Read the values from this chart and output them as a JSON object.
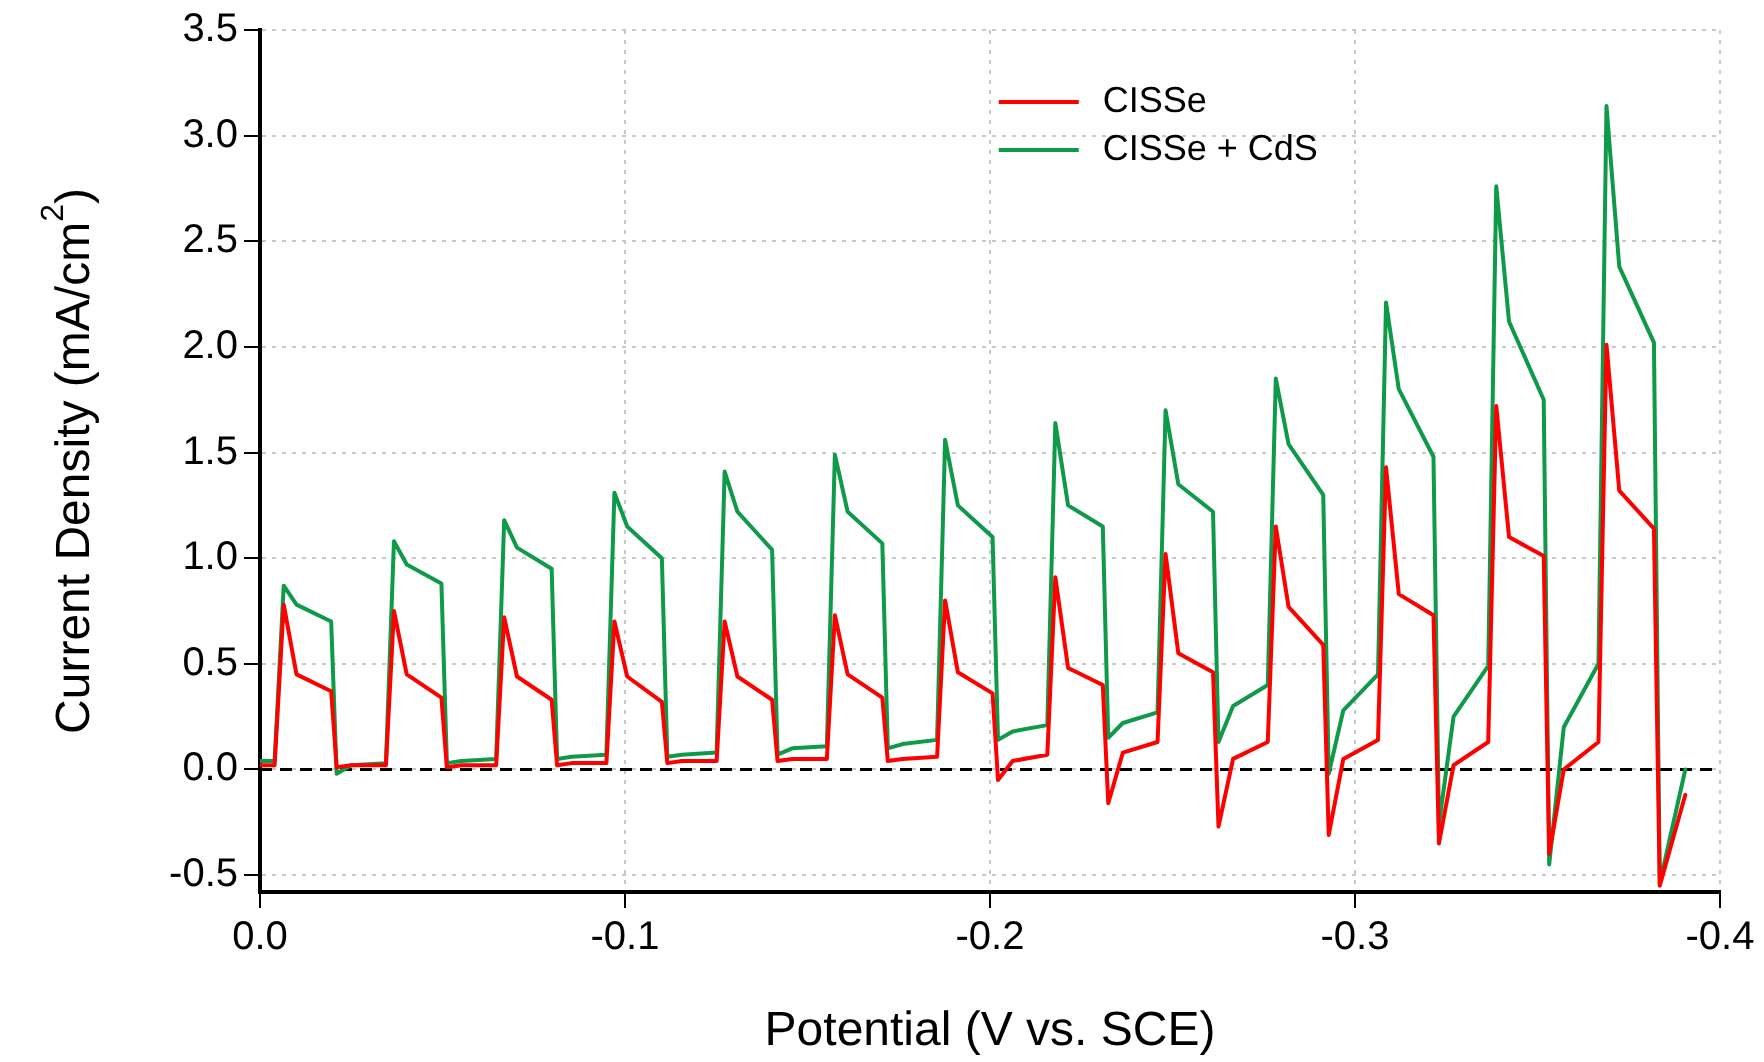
{
  "chart_data": {
    "type": "line",
    "xlabel": "Potential (V vs. SCE)",
    "ylabel": "Current Density (mA/cm$^{2}$)",
    "x": [
      0,
      -0.004,
      -0.0065,
      -0.01,
      -0.0195,
      -0.021,
      -0.025,
      -0.0345,
      -0.0367,
      -0.0402,
      -0.0497,
      -0.0512,
      -0.0552,
      -0.0647,
      -0.0669,
      -0.0704,
      -0.0799,
      -0.0814,
      -0.0854,
      -0.0949,
      -0.0971,
      -0.1006,
      -0.1101,
      -0.1116,
      -0.1156,
      -0.1251,
      -0.1273,
      -0.1308,
      -0.1403,
      -0.1418,
      -0.1458,
      -0.1553,
      -0.1575,
      -0.161,
      -0.1705,
      -0.172,
      -0.176,
      -0.1855,
      -0.1877,
      -0.1912,
      -0.2007,
      -0.2022,
      -0.2062,
      -0.2157,
      -0.2179,
      -0.2214,
      -0.2309,
      -0.2324,
      -0.2364,
      -0.2459,
      -0.2481,
      -0.2516,
      -0.2611,
      -0.2626,
      -0.2666,
      -0.2761,
      -0.2783,
      -0.2818,
      -0.2913,
      -0.2928,
      -0.2968,
      -0.3063,
      -0.3085,
      -0.312,
      -0.3215,
      -0.323,
      -0.327,
      -0.3365,
      -0.3387,
      -0.3422,
      -0.3517,
      -0.3532,
      -0.3572,
      -0.3667,
      -0.3689,
      -0.3724,
      -0.3819,
      -0.3835,
      -0.3905
    ],
    "series": [
      {
        "name": "CISSe",
        "color": "#ff0000",
        "values": [
          0.02,
          0.02,
          0.78,
          0.45,
          0.37,
          0.01,
          0.02,
          0.02,
          0.75,
          0.45,
          0.34,
          0.01,
          0.02,
          0.02,
          0.72,
          0.44,
          0.33,
          0.02,
          0.03,
          0.03,
          0.7,
          0.44,
          0.32,
          0.03,
          0.04,
          0.04,
          0.7,
          0.44,
          0.33,
          0.04,
          0.05,
          0.05,
          0.73,
          0.45,
          0.34,
          0.04,
          0.05,
          0.06,
          0.8,
          0.46,
          0.36,
          -0.05,
          0.04,
          0.07,
          0.91,
          0.48,
          0.4,
          -0.16,
          0.08,
          0.13,
          1.02,
          0.55,
          0.46,
          -0.27,
          0.05,
          0.13,
          1.15,
          0.77,
          0.59,
          -0.31,
          0.05,
          0.14,
          1.43,
          0.83,
          0.73,
          -0.35,
          0.02,
          0.13,
          1.72,
          1.1,
          1.01,
          -0.4,
          0.0,
          0.13,
          2.01,
          1.32,
          1.14,
          -0.55,
          -0.12
        ]
      },
      {
        "name": "CISSe + CdS",
        "color": "#0f9a4a",
        "values": [
          0.04,
          0.04,
          0.87,
          0.78,
          0.7,
          -0.02,
          0.02,
          0.03,
          1.08,
          0.97,
          0.88,
          0.03,
          0.04,
          0.05,
          1.18,
          1.05,
          0.95,
          0.05,
          0.06,
          0.07,
          1.31,
          1.15,
          1.0,
          0.06,
          0.07,
          0.08,
          1.41,
          1.22,
          1.04,
          0.07,
          0.1,
          0.11,
          1.49,
          1.22,
          1.07,
          0.1,
          0.12,
          0.14,
          1.56,
          1.25,
          1.1,
          0.14,
          0.18,
          0.21,
          1.64,
          1.25,
          1.15,
          0.15,
          0.22,
          0.27,
          1.7,
          1.35,
          1.22,
          0.13,
          0.3,
          0.4,
          1.85,
          1.54,
          1.3,
          -0.02,
          0.28,
          0.45,
          2.21,
          1.8,
          1.48,
          -0.26,
          0.25,
          0.49,
          2.76,
          2.12,
          1.75,
          -0.45,
          0.2,
          0.5,
          3.14,
          2.38,
          2.02,
          -0.54,
          0.0
        ]
      }
    ],
    "xlim": [
      0,
      -0.4
    ],
    "xticks": [
      {
        "value": 0,
        "label": "0.0"
      },
      -0.1,
      -0.2,
      -0.3,
      -0.4
    ],
    "ylim": [
      -0.58,
      3.5
    ],
    "yticks": [
      -0.5,
      {
        "value": 0,
        "label": "0.0"
      },
      0.5,
      {
        "value": 1,
        "label": "1.0"
      },
      1.5,
      {
        "value": 2,
        "label": "2.0"
      },
      2.5,
      {
        "value": 3,
        "label": "3.0"
      },
      3.5
    ],
    "ref_lines": [
      {
        "axis": "y",
        "value": 0,
        "color": "#000000",
        "line_style": "dashed"
      }
    ],
    "grid": true,
    "legend": "top right",
    "marker": "none",
    "line_style": "solid"
  }
}
